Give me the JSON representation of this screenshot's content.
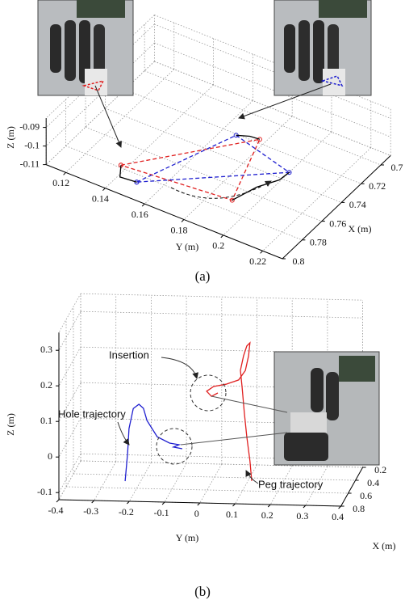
{
  "chart_data": [
    {
      "type": "line3d",
      "xlabel": "X (m)",
      "ylabel": "Y (m)",
      "zlabel": "Z (m)",
      "caption": "(a)",
      "xlim": [
        0.69,
        0.8
      ],
      "ylim": [
        0.11,
        0.23
      ],
      "zlim": [
        -0.11,
        -0.085
      ],
      "xticks": [
        0.7,
        0.72,
        0.74,
        0.76,
        0.78,
        0.8
      ],
      "yticks": [
        0.12,
        0.14,
        0.16,
        0.18,
        0.2,
        0.22
      ],
      "zticks": [
        -0.09,
        -0.1,
        -0.11
      ],
      "grid": true,
      "series": [
        {
          "color": "#e02020",
          "dashed": true,
          "marker": true,
          "x": [
            0.792,
            0.731,
            0.785,
            0.792
          ],
          "y": [
            0.144,
            0.184,
            0.197,
            0.144
          ],
          "z": [
            -0.1,
            -0.1,
            -0.1,
            -0.1
          ]
        },
        {
          "color": "#2020d0",
          "dashed": true,
          "marker": true,
          "x": [
            0.8,
            0.735,
            0.747,
            0.8
          ],
          "y": [
            0.156,
            0.174,
            0.207,
            0.156
          ],
          "z": [
            -0.1,
            -0.1,
            -0.1,
            -0.1
          ]
        },
        {
          "color": "#000000",
          "dashed": false,
          "marker": false,
          "x": [
            0.792,
            0.797,
            0.8,
            null,
            0.785,
            0.772,
            0.757,
            0.747,
            null,
            0.731,
            0.733,
            0.735
          ],
          "y": [
            0.144,
            0.146,
            0.156,
            null,
            0.197,
            0.203,
            0.207,
            0.207,
            null,
            0.184,
            0.18,
            0.174
          ],
          "z": [
            -0.1,
            -0.103,
            -0.1,
            null,
            -0.1,
            -0.097,
            -0.099,
            -0.1,
            null,
            -0.1,
            -0.099,
            -0.1
          ]
        }
      ]
    },
    {
      "type": "line3d",
      "xlabel": "X (m)",
      "ylabel": "Y (m)",
      "zlabel": "Z (m)",
      "caption": "(b)",
      "xlim": [
        0.2,
        0.8
      ],
      "ylim": [
        -0.4,
        0.4
      ],
      "zlim": [
        -0.12,
        0.35
      ],
      "xticks": [
        0.2,
        0.4,
        0.6,
        0.8
      ],
      "yticks": [
        -0.4,
        -0.3,
        -0.2,
        -0.1,
        0,
        0.1,
        0.2,
        0.3,
        0.4
      ],
      "zticks": [
        -0.1,
        0,
        0.1,
        0.2,
        0.3
      ],
      "grid": true,
      "annotations": [
        "Insertion",
        "Hole trajectory",
        "Peg trajectory"
      ],
      "series": [
        {
          "color": "#e02020",
          "dashed": false,
          "marker": false,
          "x": [
            0.5,
            0.5,
            0.5,
            0.5,
            0.5,
            0.5,
            0.5,
            0.5,
            0.5,
            0.5,
            0.5,
            0.5,
            0.5,
            0.5,
            0.5,
            0.5,
            0.5
          ],
          "y": [
            0.116,
            0.111,
            0.102,
            0.095,
            0.089,
            0.084,
            0.093,
            0.102,
            0.111,
            0.107,
            0.098,
            0.079,
            0.043,
            0.008,
            -0.012,
            0.002,
            0.02
          ],
          "z": [
            -0.11,
            -0.054,
            0.014,
            0.082,
            0.15,
            0.2,
            0.241,
            0.269,
            0.278,
            0.241,
            0.2,
            0.173,
            0.16,
            0.153,
            0.139,
            0.125,
            0.135
          ]
        },
        {
          "color": "#2020d0",
          "dashed": false,
          "marker": false,
          "x": [
            0.5,
            0.5,
            0.5,
            0.5,
            0.5,
            0.5,
            0.5,
            0.5,
            0.5,
            0.5,
            0.5,
            0.5
          ],
          "y": [
            -0.243,
            -0.236,
            -0.232,
            -0.22,
            -0.204,
            -0.191,
            -0.181,
            -0.152,
            -0.117,
            -0.09,
            -0.106,
            -0.081
          ],
          "z": [
            -0.119,
            -0.039,
            0.029,
            0.086,
            0.098,
            0.087,
            0.053,
            0.008,
            -0.009,
            -0.013,
            -0.02,
            -0.024
          ]
        }
      ]
    }
  ]
}
